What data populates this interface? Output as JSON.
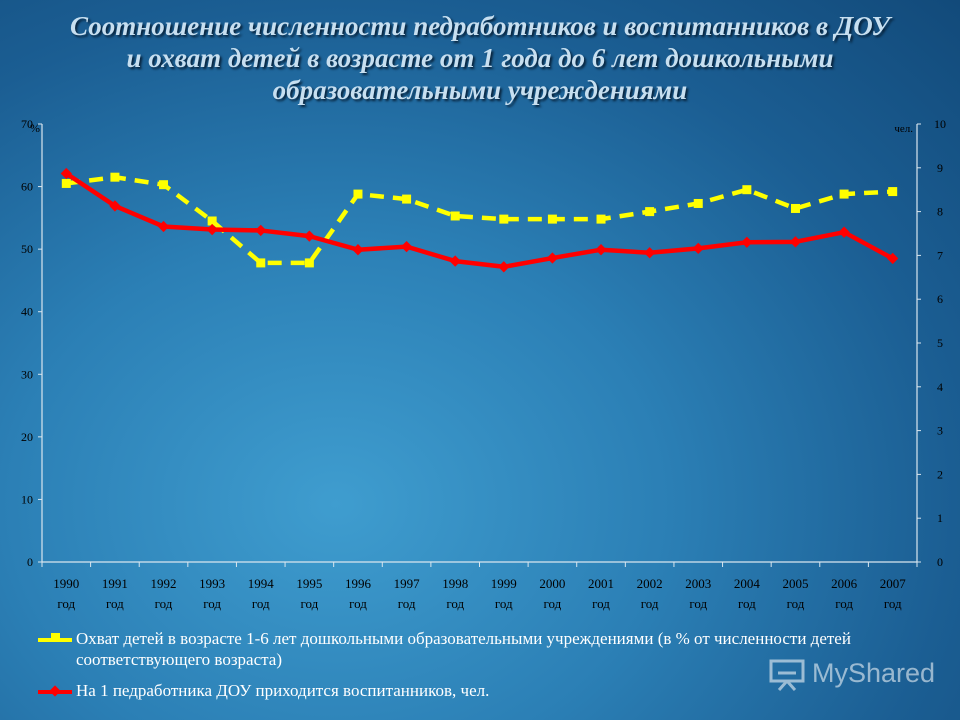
{
  "title": {
    "line1": "Соотношение  численности педработников и воспитанников в ДОУ",
    "line2": "и охват детей в возрасте от 1 года до 6 лет дошкольными",
    "line3": "образовательными учреждениями"
  },
  "chart_data": {
    "type": "line",
    "categories": [
      [
        "1990",
        "год"
      ],
      [
        "1991",
        "год"
      ],
      [
        "1992",
        "год"
      ],
      [
        "1993",
        "год"
      ],
      [
        "1994",
        "год"
      ],
      [
        "1995",
        "год"
      ],
      [
        "1996",
        "год"
      ],
      [
        "1997",
        "год"
      ],
      [
        "1998",
        "год"
      ],
      [
        "1999",
        "год"
      ],
      [
        "2000",
        "год"
      ],
      [
        "2001",
        "год"
      ],
      [
        "2002",
        "год"
      ],
      [
        "2003",
        "год"
      ],
      [
        "2004",
        "год"
      ],
      [
        "2005",
        "год"
      ],
      [
        "2006",
        "год"
      ],
      [
        "2007",
        "год"
      ]
    ],
    "y_left": {
      "label": "%",
      "range": [
        0,
        70
      ],
      "ticks": [
        "0",
        "10",
        "20",
        "30",
        "40",
        "50",
        "60",
        "70"
      ]
    },
    "y_right": {
      "label": "чел.",
      "range": [
        0,
        10
      ],
      "ticks": [
        "0",
        "1",
        "2",
        "3",
        "4",
        "5",
        "6",
        "7",
        "8",
        "9",
        "10"
      ]
    },
    "grid": false,
    "series": [
      {
        "name": "Охват детей в возрасте 1-6 лет дошкольными образовательными учреждениями (в % от численности детей соответствующего возраста)",
        "axis": "left",
        "color": "#ffff00",
        "marker": "square",
        "style": "dashed",
        "values": [
          60.5,
          61.5,
          60.3,
          54.5,
          47.8,
          47.8,
          58.8,
          58.0,
          55.3,
          54.8,
          54.8,
          54.8,
          56.0,
          57.3,
          59.5,
          56.5,
          58.8,
          59.2
        ]
      },
      {
        "name": "На 1 педработника ДОУ приходится воспитанников,  чел.",
        "axis": "right",
        "color": "#ff0000",
        "marker": "diamond",
        "style": "solid",
        "values": [
          8.87,
          8.13,
          7.66,
          7.59,
          7.57,
          7.44,
          7.13,
          7.2,
          6.87,
          6.74,
          6.94,
          7.13,
          7.06,
          7.16,
          7.3,
          7.31,
          7.53,
          6.93
        ]
      }
    ],
    "legend_position": "bottom"
  },
  "watermark": "MyShared"
}
